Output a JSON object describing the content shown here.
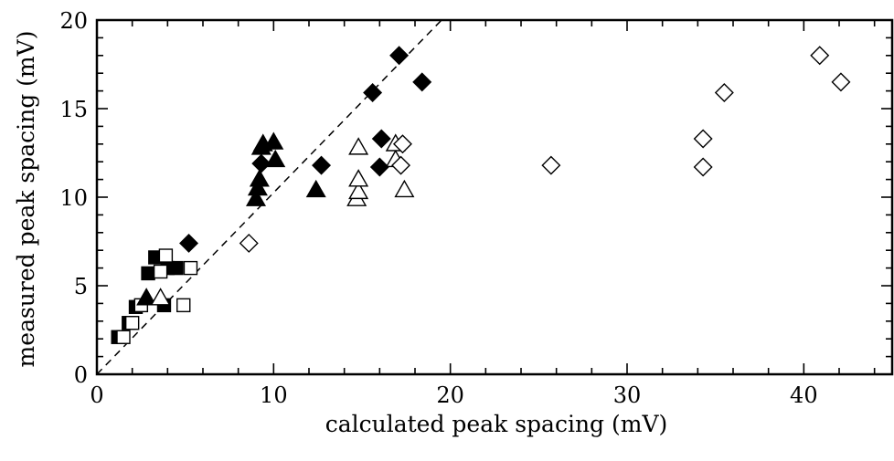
{
  "chart_data": {
    "type": "scatter",
    "xlabel": "calculated peak spacing (mV)",
    "ylabel": "measured peak spacing (mV)",
    "xlim": [
      0,
      45
    ],
    "ylim": [
      0,
      20
    ],
    "xticks": [
      0,
      10,
      20,
      30,
      40
    ],
    "yticks": [
      0,
      5,
      10,
      15,
      20
    ],
    "x_minor_step": 2,
    "y_minor_step": 1,
    "grid": false,
    "reference_line": {
      "style": "dashed",
      "points": [
        [
          0,
          0
        ],
        [
          19.5,
          20
        ]
      ]
    },
    "series": [
      {
        "marker": "square",
        "filled": true,
        "points": [
          [
            1.2,
            2.1
          ],
          [
            1.8,
            2.9
          ],
          [
            2.2,
            3.8
          ],
          [
            2.9,
            5.7
          ],
          [
            3.3,
            6.6
          ],
          [
            3.8,
            3.9
          ],
          [
            4.0,
            6.0
          ],
          [
            4.5,
            6.0
          ]
        ]
      },
      {
        "marker": "square",
        "filled": false,
        "points": [
          [
            1.5,
            2.1
          ],
          [
            2.0,
            2.9
          ],
          [
            2.5,
            3.9
          ],
          [
            3.6,
            5.8
          ],
          [
            3.9,
            6.7
          ],
          [
            4.9,
            3.9
          ],
          [
            5.3,
            6.0
          ]
        ]
      },
      {
        "marker": "triangle",
        "filled": true,
        "points": [
          [
            2.8,
            4.3
          ],
          [
            9.0,
            9.9
          ],
          [
            9.1,
            10.5
          ],
          [
            9.2,
            11.0
          ],
          [
            9.3,
            12.8
          ],
          [
            9.4,
            13.0
          ],
          [
            10.0,
            13.1
          ],
          [
            10.1,
            12.1
          ],
          [
            12.4,
            10.4
          ]
        ]
      },
      {
        "marker": "triangle",
        "filled": false,
        "points": [
          [
            3.6,
            4.3
          ],
          [
            14.7,
            9.9
          ],
          [
            14.8,
            10.3
          ],
          [
            14.8,
            11.0
          ],
          [
            14.8,
            12.8
          ],
          [
            16.9,
            12.1
          ],
          [
            16.9,
            13.0
          ],
          [
            17.4,
            10.4
          ]
        ]
      },
      {
        "marker": "diamond",
        "filled": true,
        "points": [
          [
            5.2,
            7.4
          ],
          [
            9.3,
            11.9
          ],
          [
            12.7,
            11.8
          ],
          [
            15.6,
            15.9
          ],
          [
            16.0,
            11.7
          ],
          [
            16.1,
            13.3
          ],
          [
            17.1,
            18.0
          ],
          [
            18.4,
            16.5
          ]
        ]
      },
      {
        "marker": "diamond",
        "filled": false,
        "points": [
          [
            8.6,
            7.4
          ],
          [
            17.2,
            11.8
          ],
          [
            17.3,
            13.0
          ],
          [
            25.7,
            11.8
          ],
          [
            34.3,
            11.7
          ],
          [
            34.3,
            13.3
          ],
          [
            35.5,
            15.9
          ],
          [
            40.9,
            18.0
          ],
          [
            42.1,
            16.5
          ]
        ]
      }
    ]
  }
}
